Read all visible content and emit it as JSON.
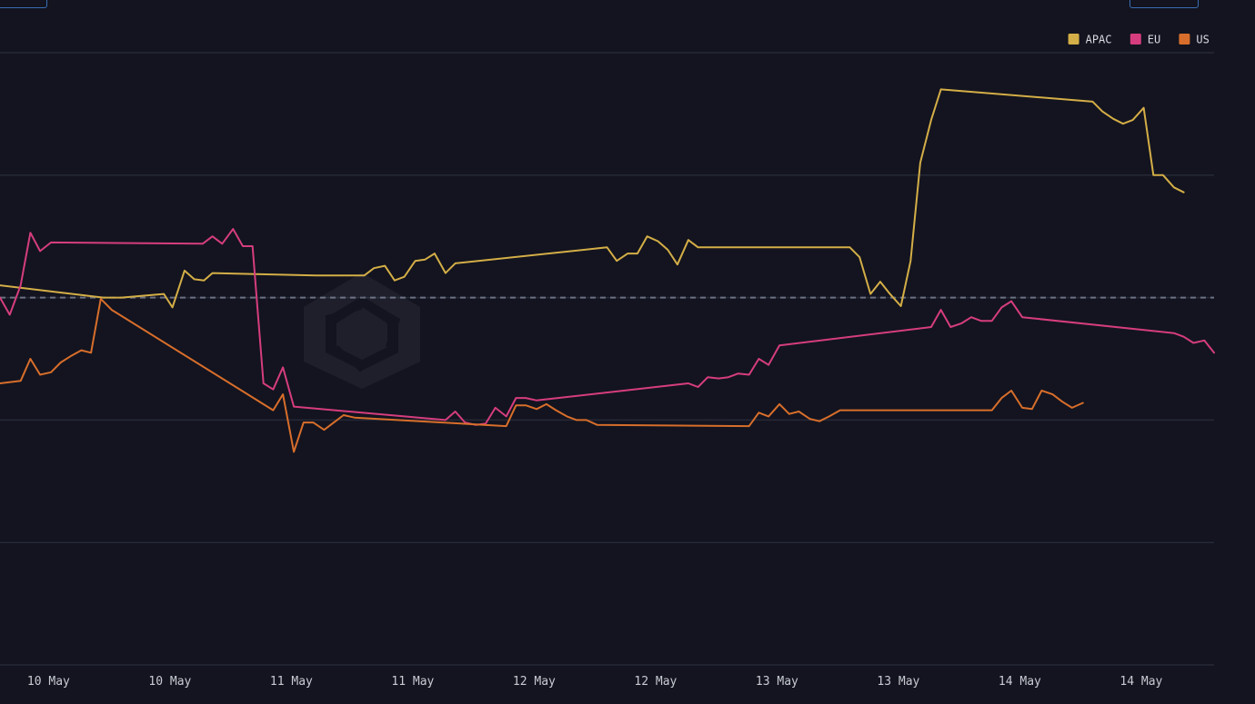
{
  "chart_data": {
    "type": "line",
    "title": "",
    "xlabel": "",
    "ylabel": "",
    "x_tick_labels": [
      "10 May",
      "10 May",
      "11 May",
      "11 May",
      "12 May",
      "12 May",
      "13 May",
      "13 May",
      "14 May",
      "14 May"
    ],
    "x_ticks": [
      0.4,
      1.4,
      2.4,
      3.4,
      4.4,
      5.4,
      6.4,
      7.4,
      8.4,
      9.4
    ],
    "xlim": [
      0,
      10.0
    ],
    "ylim": [
      -1.0,
      4.0
    ],
    "y_gridlines": [
      -1,
      0,
      1,
      2,
      3,
      4
    ],
    "y_tick_labels": [],
    "reference_line": 2.0,
    "grid": true,
    "legend_position": "top-right",
    "series": [
      {
        "name": "APAC",
        "color": "#d4ae47",
        "points": [
          [
            0.0,
            2.1
          ],
          [
            0.85,
            2.0
          ],
          [
            1.0,
            2.0
          ],
          [
            1.35,
            2.03
          ],
          [
            1.42,
            1.92
          ],
          [
            1.52,
            2.22
          ],
          [
            1.6,
            2.15
          ],
          [
            1.68,
            2.14
          ],
          [
            1.75,
            2.2
          ],
          [
            2.6,
            2.18
          ],
          [
            3.0,
            2.18
          ],
          [
            3.08,
            2.24
          ],
          [
            3.17,
            2.26
          ],
          [
            3.25,
            2.14
          ],
          [
            3.33,
            2.17
          ],
          [
            3.42,
            2.3
          ],
          [
            3.5,
            2.31
          ],
          [
            3.58,
            2.36
          ],
          [
            3.67,
            2.2
          ],
          [
            3.75,
            2.28
          ],
          [
            5.0,
            2.41
          ],
          [
            5.08,
            2.3
          ],
          [
            5.17,
            2.36
          ],
          [
            5.25,
            2.36
          ],
          [
            5.33,
            2.5
          ],
          [
            5.42,
            2.46
          ],
          [
            5.5,
            2.39
          ],
          [
            5.58,
            2.27
          ],
          [
            5.67,
            2.47
          ],
          [
            5.75,
            2.41
          ],
          [
            7.0,
            2.41
          ],
          [
            7.08,
            2.33
          ],
          [
            7.17,
            2.03
          ],
          [
            7.25,
            2.13
          ],
          [
            7.33,
            2.03
          ],
          [
            7.42,
            1.93
          ],
          [
            7.5,
            2.3
          ],
          [
            7.58,
            3.1
          ],
          [
            7.67,
            3.45
          ],
          [
            7.75,
            3.7
          ],
          [
            9.0,
            3.6
          ],
          [
            9.08,
            3.52
          ],
          [
            9.17,
            3.46
          ],
          [
            9.25,
            3.42
          ],
          [
            9.33,
            3.45
          ],
          [
            9.42,
            3.55
          ],
          [
            9.5,
            3.0
          ],
          [
            9.58,
            3.0
          ],
          [
            9.67,
            2.9
          ],
          [
            9.75,
            2.86
          ]
        ]
      },
      {
        "name": "EU",
        "color": "#d63d7e",
        "points": [
          [
            0.0,
            2.0
          ],
          [
            0.08,
            1.86
          ],
          [
            0.17,
            2.1
          ],
          [
            0.25,
            2.53
          ],
          [
            0.33,
            2.38
          ],
          [
            0.42,
            2.45
          ],
          [
            1.67,
            2.44
          ],
          [
            1.75,
            2.5
          ],
          [
            1.83,
            2.44
          ],
          [
            1.92,
            2.56
          ],
          [
            2.0,
            2.42
          ],
          [
            2.08,
            2.42
          ],
          [
            2.17,
            1.3
          ],
          [
            2.25,
            1.25
          ],
          [
            2.33,
            1.43
          ],
          [
            2.42,
            1.11
          ],
          [
            3.67,
            1.0
          ],
          [
            3.75,
            1.07
          ],
          [
            3.83,
            0.98
          ],
          [
            3.92,
            0.96
          ],
          [
            4.0,
            0.97
          ],
          [
            4.08,
            1.1
          ],
          [
            4.17,
            1.03
          ],
          [
            4.25,
            1.18
          ],
          [
            4.33,
            1.18
          ],
          [
            4.42,
            1.16
          ],
          [
            5.67,
            1.3
          ],
          [
            5.75,
            1.27
          ],
          [
            5.83,
            1.35
          ],
          [
            5.92,
            1.34
          ],
          [
            6.0,
            1.35
          ],
          [
            6.08,
            1.38
          ],
          [
            6.17,
            1.37
          ],
          [
            6.25,
            1.5
          ],
          [
            6.33,
            1.45
          ],
          [
            6.42,
            1.61
          ],
          [
            7.67,
            1.76
          ],
          [
            7.75,
            1.9
          ],
          [
            7.83,
            1.76
          ],
          [
            7.92,
            1.79
          ],
          [
            8.0,
            1.84
          ],
          [
            8.08,
            1.81
          ],
          [
            8.17,
            1.81
          ],
          [
            8.25,
            1.92
          ],
          [
            8.33,
            1.97
          ],
          [
            8.42,
            1.84
          ],
          [
            9.67,
            1.71
          ],
          [
            9.75,
            1.68
          ],
          [
            9.83,
            1.63
          ],
          [
            9.92,
            1.65
          ],
          [
            10.0,
            1.55
          ]
        ]
      },
      {
        "name": "US",
        "color": "#d86e2b",
        "points": [
          [
            0.0,
            1.3
          ],
          [
            0.17,
            1.32
          ],
          [
            0.25,
            1.5
          ],
          [
            0.33,
            1.37
          ],
          [
            0.42,
            1.39
          ],
          [
            0.5,
            1.47
          ],
          [
            0.58,
            1.52
          ],
          [
            0.67,
            1.57
          ],
          [
            0.75,
            1.55
          ],
          [
            0.83,
            1.99
          ],
          [
            0.92,
            1.9
          ],
          [
            2.25,
            1.08
          ],
          [
            2.33,
            1.21
          ],
          [
            2.42,
            0.74
          ],
          [
            2.5,
            0.98
          ],
          [
            2.58,
            0.98
          ],
          [
            2.67,
            0.92
          ],
          [
            2.75,
            0.98
          ],
          [
            2.83,
            1.04
          ],
          [
            2.92,
            1.02
          ],
          [
            4.17,
            0.95
          ],
          [
            4.25,
            1.12
          ],
          [
            4.33,
            1.12
          ],
          [
            4.42,
            1.09
          ],
          [
            4.5,
            1.13
          ],
          [
            4.58,
            1.08
          ],
          [
            4.67,
            1.03
          ],
          [
            4.75,
            1.0
          ],
          [
            4.83,
            1.0
          ],
          [
            4.92,
            0.96
          ],
          [
            6.17,
            0.95
          ],
          [
            6.25,
            1.06
          ],
          [
            6.33,
            1.03
          ],
          [
            6.42,
            1.13
          ],
          [
            6.5,
            1.05
          ],
          [
            6.58,
            1.07
          ],
          [
            6.67,
            1.01
          ],
          [
            6.75,
            0.99
          ],
          [
            6.83,
            1.03
          ],
          [
            6.92,
            1.08
          ],
          [
            8.17,
            1.08
          ],
          [
            8.25,
            1.18
          ],
          [
            8.33,
            1.24
          ],
          [
            8.42,
            1.1
          ],
          [
            8.5,
            1.09
          ],
          [
            8.58,
            1.24
          ],
          [
            8.67,
            1.21
          ],
          [
            8.75,
            1.15
          ],
          [
            8.83,
            1.1
          ],
          [
            8.92,
            1.14
          ]
        ]
      }
    ]
  }
}
